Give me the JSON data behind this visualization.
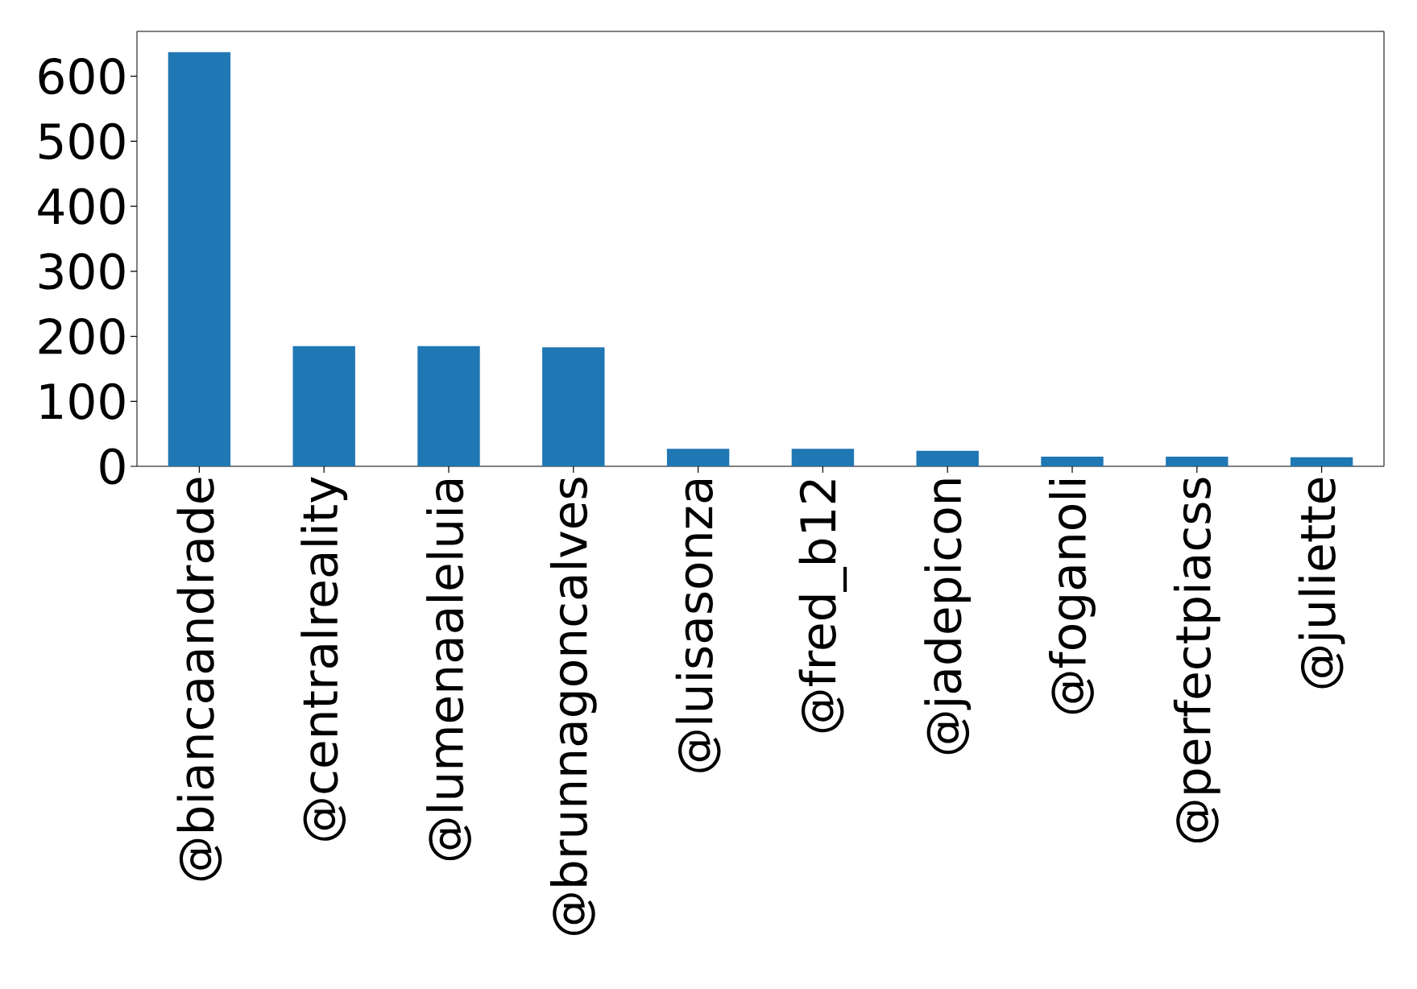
{
  "chart_data": {
    "type": "bar",
    "categories": [
      "@biancaandrade",
      "@centralreality",
      "@lumenaaleluia",
      "@brunnagoncalves",
      "@luisasonza",
      "@fred_b12",
      "@jadepicon",
      "@foganoli",
      "@perfectpiacss",
      "@juliette"
    ],
    "values": [
      637,
      185,
      185,
      183,
      27,
      27,
      24,
      15,
      15,
      14
    ],
    "color": "#1f77b4",
    "ylim": [
      0,
      669
    ],
    "yticks": [
      0,
      100,
      200,
      300,
      400,
      500,
      600
    ]
  }
}
